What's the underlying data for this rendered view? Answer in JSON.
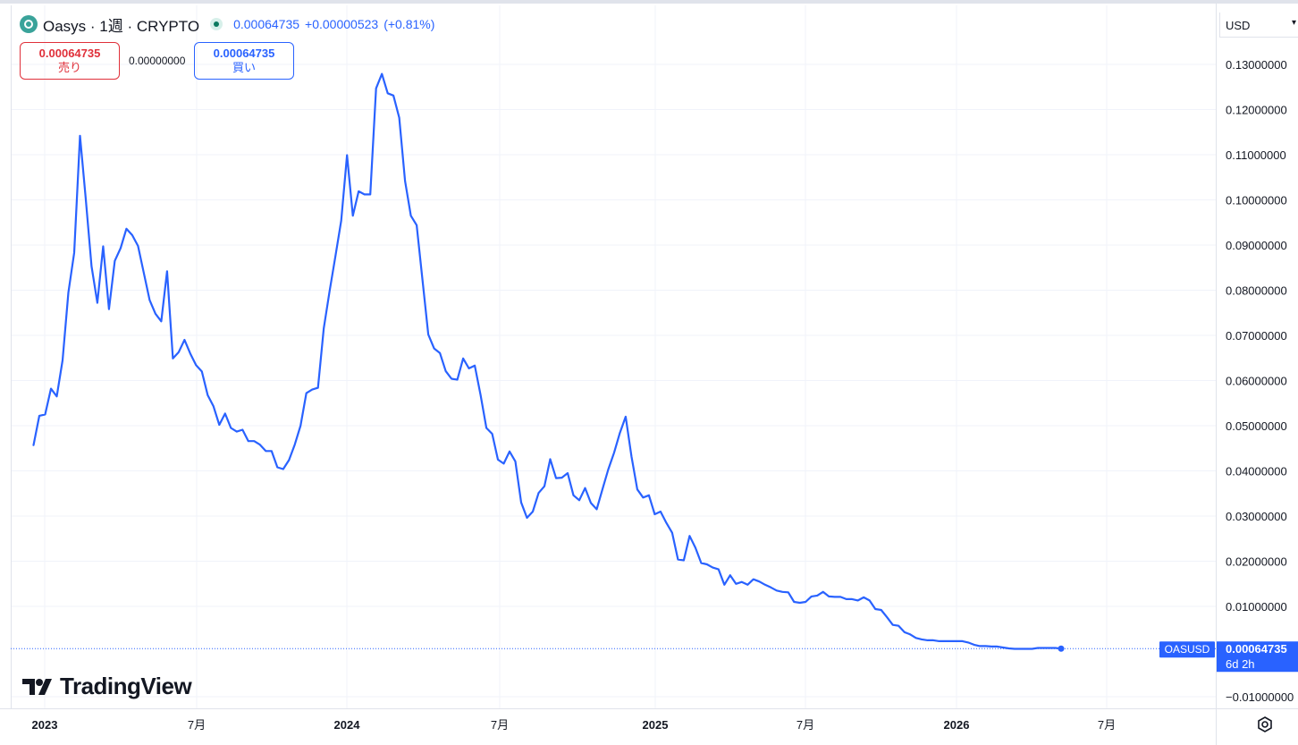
{
  "header": {
    "symbol_title": "Oasys · 1週 · CRYPTO",
    "last": "0.00064735",
    "change": "+0.00000523",
    "change_pct": "(+0.81%)"
  },
  "trade": {
    "sell_price": "0.00064735",
    "sell_label": "売り",
    "spread": "0.00000000",
    "buy_price": "0.00064735",
    "buy_label": "買い"
  },
  "currency": "USD",
  "brand": "TradingView",
  "last_price_tag": {
    "symbol": "OASUSD",
    "price": "0.00064735",
    "countdown": "6d 2h"
  },
  "colors": {
    "line": "#2962ff",
    "sell": "#e0303a",
    "buy": "#2962ff"
  },
  "icons": {
    "settings": "gear-icon",
    "logo": "tradingview-logo-icon",
    "coin": "oasys-coin-icon"
  },
  "chart_data": {
    "type": "line",
    "title": "",
    "xlabel": "",
    "ylabel": "",
    "x_ticks": [
      "2023",
      "7月",
      "2024",
      "7月",
      "2025",
      "7月",
      "2026",
      "7月"
    ],
    "y_ticks": [
      "0.13000000",
      "0.12000000",
      "0.11000000",
      "0.10000000",
      "0.09000000",
      "0.08000000",
      "0.07000000",
      "0.06000000",
      "0.05000000",
      "0.04000000",
      "0.03000000",
      "0.02000000",
      "0.01000000",
      "−0.01000000"
    ],
    "ylim": [
      -0.0125,
      0.136
    ],
    "grid": true,
    "series": [
      {
        "values": [
          0.0457,
          0.0522,
          0.0525,
          0.0582,
          0.0565,
          0.0645,
          0.0795,
          0.0883,
          0.1142,
          0.1003,
          0.0853,
          0.0772,
          0.0897,
          0.0758,
          0.0865,
          0.0893,
          0.0936,
          0.0922,
          0.0898,
          0.0838,
          0.0778,
          0.0748,
          0.0731,
          0.0842,
          0.0649,
          0.0663,
          0.069,
          0.066,
          0.0634,
          0.062,
          0.0568,
          0.0543,
          0.0502,
          0.0527,
          0.0495,
          0.0487,
          0.0491,
          0.0466,
          0.0466,
          0.0458,
          0.0444,
          0.0444,
          0.0408,
          0.0404,
          0.0424,
          0.0458,
          0.05,
          0.0572,
          0.058,
          0.0584,
          0.0716,
          0.0798,
          0.0875,
          0.0954,
          0.1099,
          0.0965,
          0.1019,
          0.1012,
          0.1012,
          0.1247,
          0.1279,
          0.1236,
          0.1231,
          0.1182,
          0.1042,
          0.0965,
          0.0944,
          0.0823,
          0.0702,
          0.0671,
          0.0661,
          0.0621,
          0.0604,
          0.0602,
          0.0649,
          0.0627,
          0.0633,
          0.0568,
          0.0495,
          0.0482,
          0.0425,
          0.0416,
          0.0443,
          0.0421,
          0.033,
          0.0296,
          0.031,
          0.0351,
          0.0366,
          0.0426,
          0.0384,
          0.0385,
          0.0395,
          0.0346,
          0.0335,
          0.0362,
          0.0329,
          0.0315,
          0.0359,
          0.0403,
          0.044,
          0.0484,
          0.052,
          0.0432,
          0.0359,
          0.0341,
          0.0346,
          0.0304,
          0.031,
          0.0285,
          0.0263,
          0.0204,
          0.0202,
          0.0256,
          0.023,
          0.0196,
          0.0193,
          0.0186,
          0.0182,
          0.0148,
          0.0169,
          0.015,
          0.0154,
          0.0148,
          0.016,
          0.0155,
          0.0148,
          0.0142,
          0.0135,
          0.0132,
          0.0131,
          0.011,
          0.0108,
          0.011,
          0.0122,
          0.0124,
          0.0132,
          0.0122,
          0.0121,
          0.0121,
          0.0116,
          0.0116,
          0.0113,
          0.012,
          0.0113,
          0.0094,
          0.0092,
          0.0076,
          0.0059,
          0.0057,
          0.0043,
          0.0038,
          0.003,
          0.0027,
          0.0025,
          0.0025,
          0.0023,
          0.0023,
          0.0023,
          0.0023,
          0.0023,
          0.002,
          0.0015,
          0.0012,
          0.0012,
          0.0011,
          0.0011,
          0.0009,
          0.0007,
          0.0006,
          0.0006,
          0.0006,
          0.0006,
          0.0008,
          0.0008,
          0.0008,
          0.0008,
          0.00064735
        ]
      }
    ]
  }
}
